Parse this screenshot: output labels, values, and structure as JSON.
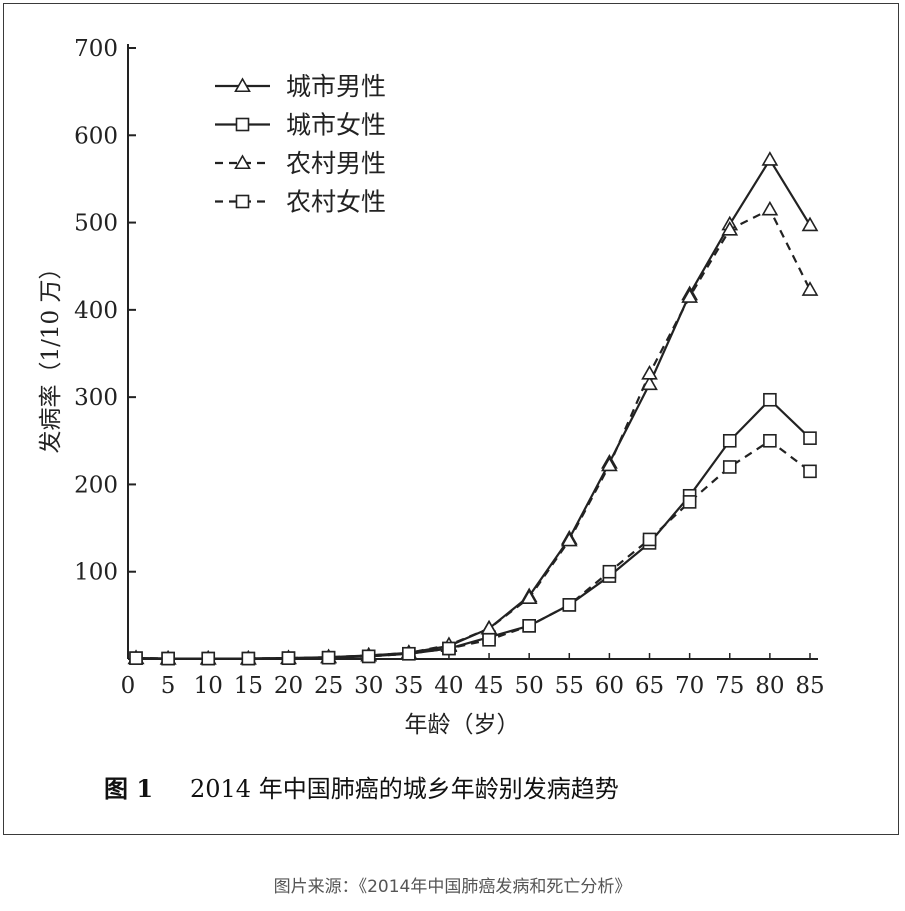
{
  "chart_data": {
    "type": "line",
    "ylabel": "发病率（1/10 万）",
    "xlabel": "年龄（岁）",
    "x": [
      1,
      5,
      10,
      15,
      20,
      25,
      30,
      35,
      40,
      45,
      50,
      55,
      60,
      65,
      70,
      75,
      80,
      85
    ],
    "xticks": [
      0,
      5,
      10,
      15,
      20,
      25,
      30,
      35,
      40,
      45,
      50,
      55,
      60,
      65,
      70,
      75,
      80,
      85
    ],
    "yticks": [
      100,
      200,
      300,
      400,
      500,
      600,
      700
    ],
    "ylim": [
      0,
      700
    ],
    "xlim": [
      0,
      85
    ],
    "y_zero_label": "0",
    "legend_position": "top-left",
    "series": [
      {
        "name": "城市男性",
        "style": "solid",
        "marker": "triangle",
        "values": [
          1,
          0.5,
          0.5,
          0.5,
          1,
          2,
          4,
          7,
          15,
          35,
          72,
          138,
          225,
          315,
          418,
          498,
          572,
          497
        ]
      },
      {
        "name": "城市女性",
        "style": "solid",
        "marker": "square",
        "values": [
          1,
          0.5,
          0.5,
          0.5,
          1,
          1.5,
          3,
          6,
          12,
          25,
          38,
          62,
          95,
          133,
          187,
          250,
          297,
          253
        ]
      },
      {
        "name": "农村男性",
        "style": "dashed",
        "marker": "triangle",
        "values": [
          1,
          0.5,
          0.5,
          0.5,
          1,
          2,
          4,
          7,
          16,
          35,
          70,
          136,
          222,
          327,
          415,
          492,
          515,
          423
        ]
      },
      {
        "name": "农村女性",
        "style": "dashed",
        "marker": "square",
        "values": [
          1,
          0.5,
          0.5,
          0.5,
          1,
          1.5,
          3,
          6,
          12,
          22,
          38,
          62,
          100,
          137,
          180,
          220,
          250,
          215
        ]
      }
    ]
  },
  "caption": {
    "label": "图 1",
    "text": "2014 年中国肺癌的城乡年龄别发病趋势"
  },
  "source": "图片来源：《2014年中国肺癌发病和死亡分析》"
}
